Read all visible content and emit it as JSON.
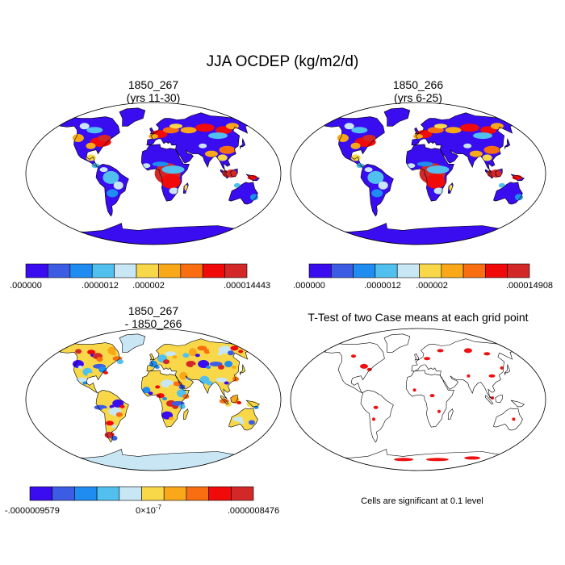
{
  "title": "JJA OCDEP (kg/m2/d)",
  "colors": {
    "scale10": [
      "#3a0cf0",
      "#3c5ce4",
      "#1e8cf0",
      "#52c0ee",
      "#c8e6f4",
      "#f8d848",
      "#f8a818",
      "#f86e10",
      "#f00a0a",
      "#d22828"
    ],
    "land_blue": "#3a0cf0",
    "ocean": "#ffffff",
    "signif": "#ee1111"
  },
  "panels": [
    {
      "title_line1": "1850_267",
      "title_line2": "(yrs 11-30)"
    },
    {
      "title_line1": "1850_266",
      "title_line2": "(yrs 6-25)"
    },
    {
      "title_line1": "1850_267",
      "title_line2": "- 1850_266"
    },
    {
      "title_line1": "T-Test of two Case means at each grid point",
      "title_line2": ""
    }
  ],
  "colorbars": [
    {
      "labels": [
        ".000000",
        ".0000012",
        ".000002",
        ".000014443"
      ]
    },
    {
      "labels": [
        ".000000",
        ".0000012",
        ".000002",
        ".000014908"
      ]
    },
    {
      "label_min": "-.0000009579",
      "label_mid_base": "0×10",
      "label_mid_exp": "-7",
      "label_max": ".0000008476"
    }
  ],
  "footnote": "Cells are significant at 0.1 level",
  "chart_data": [
    {
      "type": "heatmap",
      "title": "1850_267 (yrs 11-30)",
      "projection": "Robinson",
      "scale": "10 color levels",
      "range": [
        0.0,
        1.4443e-05
      ],
      "tick_labels": [
        ".000000",
        ".0000012",
        ".000002",
        ".000014443"
      ]
    },
    {
      "type": "heatmap",
      "title": "1850_266 (yrs 6-25)",
      "projection": "Robinson",
      "scale": "10 color levels",
      "range": [
        0.0,
        1.4908e-05
      ],
      "tick_labels": [
        ".000000",
        ".0000012",
        ".000002",
        ".000014908"
      ]
    },
    {
      "type": "heatmap",
      "title": "1850_267 - 1850_266",
      "projection": "Robinson",
      "scale": "10 color levels, diverging",
      "range": [
        -9.579e-07,
        8.476e-07
      ],
      "tick_labels": [
        "-.0000009579",
        "0×10-7",
        ".0000008476"
      ]
    },
    {
      "type": "heatmap",
      "title": "T-Test of two Case means at each grid point",
      "projection": "Robinson",
      "note": "Cells are significant at 0.1 level"
    }
  ]
}
